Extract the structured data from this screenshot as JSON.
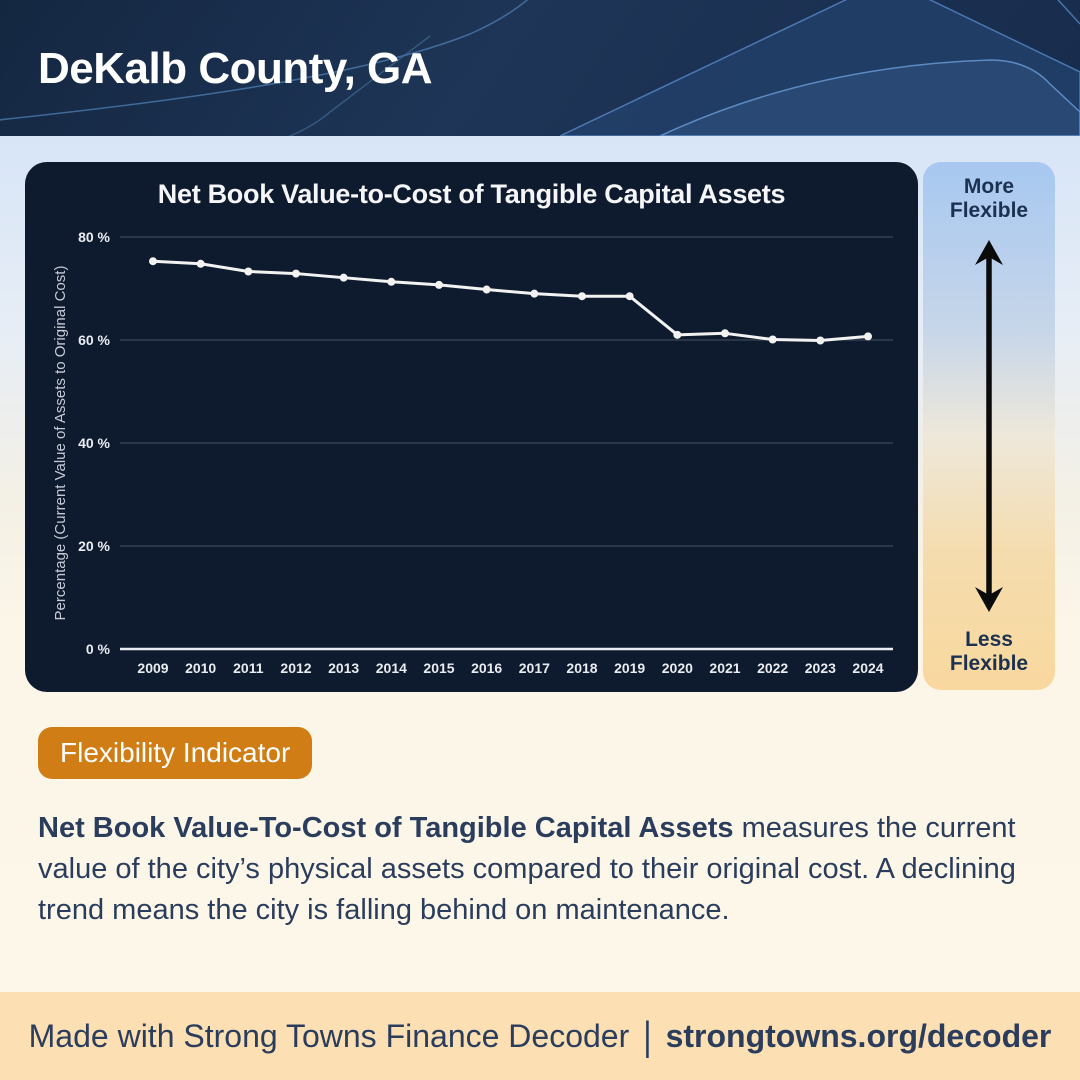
{
  "header": {
    "title": "DeKalb County, GA"
  },
  "chart_data": {
    "type": "line",
    "title": "Net Book Value-to-Cost of Tangible Capital Assets",
    "ylabel": "Percentage (Current Value of Assets to Original Cost)",
    "x": [
      "2009",
      "2010",
      "2011",
      "2012",
      "2013",
      "2014",
      "2015",
      "2016",
      "2017",
      "2018",
      "2019",
      "2020",
      "2021",
      "2022",
      "2023",
      "2024"
    ],
    "values": [
      75.3,
      74.8,
      73.3,
      72.9,
      72.1,
      71.3,
      70.7,
      69.8,
      69.0,
      68.5,
      68.5,
      61.0,
      61.3,
      60.1,
      59.9,
      60.7
    ],
    "ylim": [
      0,
      80
    ],
    "yticks": [
      0,
      20,
      40,
      60,
      80
    ],
    "ytick_suffix": " %",
    "grid": true,
    "legend": "none",
    "line_color": "#f2f2f2",
    "grid_color": "rgba(160,170,185,0.4)",
    "axis_color": "#e9ecf1",
    "tick_label_color": "#e9ecf1"
  },
  "flex_scale": {
    "top_label": "More Flexible",
    "bottom_label": "Less Flexible",
    "arrow_icon": "double-headed-vertical-arrow",
    "arrow_color": "#0b0b0b"
  },
  "badge": {
    "label": "Flexibility Indicator"
  },
  "description": {
    "bold": "Net Book Value-To-Cost of Tangible Capital Assets",
    "rest": " measures the current value of the city’s physical assets compared to their original cost. A declining trend means the city is falling behind on maintenance."
  },
  "footer": {
    "prefix": "Made with Strong Towns Finance Decoder",
    "separator": "|",
    "link": "strongtowns.org/decoder"
  },
  "theme": {
    "header_bg": "#1b3153",
    "panel_bg": "#0e1a2d",
    "badge_orange": "#d17d15",
    "footer_bg": "#fcdfb2",
    "text_navy": "#2b3d5d",
    "scale_blue": "#a7c8f1",
    "scale_orange": "#f8d89e"
  }
}
